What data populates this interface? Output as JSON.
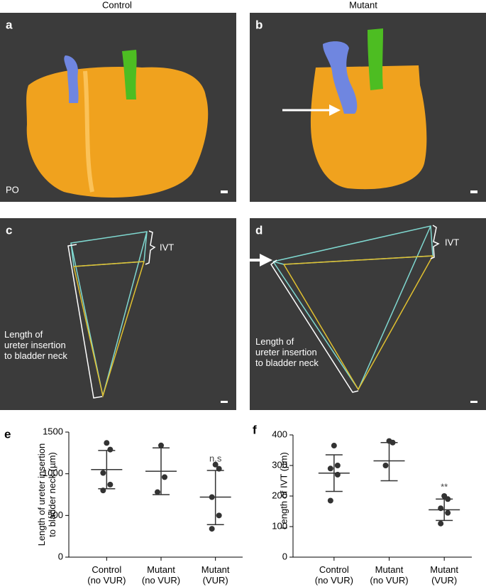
{
  "figure": {
    "columns": [
      "Control",
      "Mutant"
    ],
    "panels": [
      "a",
      "b",
      "c",
      "d",
      "e",
      "f"
    ],
    "po_label": "PO",
    "ivt_labels": [
      "IVT",
      "IVT"
    ],
    "length_labels": [
      "Length of\nureter insertion\nto bladder neck",
      "Length of\nureter insertion\nto bladder neck"
    ]
  },
  "chart_data": [
    {
      "type": "dot",
      "ylabel": "Length of ureter insertion\nto bladder neck (µm)",
      "categories": [
        "Control\n(no VUR)",
        "Mutant\n(no VUR)",
        "Mutant\n(VUR)"
      ],
      "points": [
        [
          1370,
          1290,
          1010,
          870,
          800
        ],
        [
          1340,
          960,
          780
        ],
        [
          1110,
          1060,
          720,
          500,
          340
        ]
      ],
      "mean": [
        1050,
        1030,
        720
      ],
      "sd_upper": [
        1280,
        1310,
        1040
      ],
      "sd_lower": [
        820,
        750,
        390
      ],
      "annotations": [
        "",
        "",
        "n.s"
      ],
      "color": "#333333",
      "ylim": [
        0,
        1500
      ],
      "yticks": [
        0,
        500,
        1000,
        1500
      ]
    },
    {
      "type": "dot",
      "ylabel": "Length of IVT (µm)",
      "categories": [
        "Control\n(no VUR)",
        "Mutant\n(no VUR)",
        "Mutant\n(VUR)"
      ],
      "points": [
        [
          365,
          300,
          290,
          270,
          185
        ],
        [
          380,
          375,
          300
        ],
        [
          200,
          190,
          160,
          145,
          110
        ]
      ],
      "mean": [
        275,
        315,
        155
      ],
      "sd_upper": [
        335,
        375,
        190
      ],
      "sd_lower": [
        215,
        250,
        120
      ],
      "annotations": [
        "",
        "",
        "**"
      ],
      "color": "#333333",
      "ylim": [
        0,
        400
      ],
      "yticks": [
        0,
        100,
        200,
        300,
        400
      ]
    }
  ]
}
